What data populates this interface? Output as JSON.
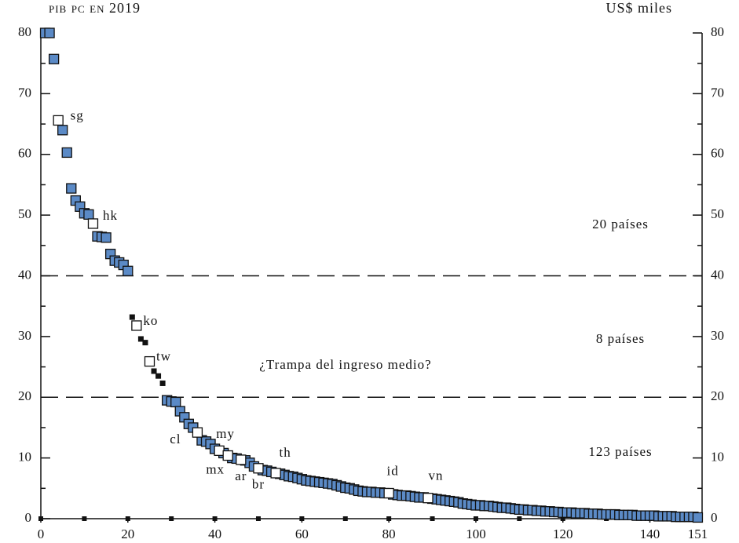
{
  "chart_data": {
    "type": "scatter",
    "ylabel": "pib pc en 2019",
    "y2label": "US$ miles",
    "xlim": [
      0,
      152
    ],
    "ylim": [
      0,
      80
    ],
    "y2lim": [
      0,
      80
    ],
    "xticks": [
      0,
      20,
      40,
      60,
      80,
      100,
      120,
      140,
      151
    ],
    "xticks_minor": [
      0,
      10,
      20,
      30,
      40,
      50,
      60,
      70,
      80,
      90,
      100,
      110,
      120,
      130,
      140,
      150
    ],
    "yticks": [
      0,
      10,
      20,
      30,
      40,
      50,
      60,
      70,
      80
    ],
    "y2ticks": [
      0,
      10,
      20,
      30,
      40,
      50,
      60,
      70,
      80
    ],
    "yticks_minor": [
      5,
      15,
      25,
      35,
      45,
      55,
      65,
      75
    ],
    "hlines": [
      40,
      20
    ],
    "annotations": [
      "20 países",
      "8 países",
      "123 países",
      "¿Trampa del ingreso medio?"
    ],
    "series": [
      {
        "color": "#5b8ac6",
        "marker": "square",
        "x": [
          1,
          2,
          3,
          5,
          6,
          7,
          8,
          9,
          10,
          11,
          13,
          14,
          15,
          16,
          17,
          18,
          19,
          20,
          29,
          30,
          31,
          32,
          33,
          34,
          35,
          37,
          38,
          39,
          40,
          42,
          44,
          45,
          47,
          48,
          49,
          51,
          52,
          53,
          55,
          56,
          57,
          58,
          59,
          60,
          61,
          62,
          63,
          64,
          65,
          66,
          67,
          68,
          69,
          70,
          71,
          72,
          73,
          74,
          75,
          76,
          77,
          78,
          79,
          81,
          82,
          83,
          84,
          85,
          86,
          87,
          88,
          90,
          91,
          92,
          93,
          94,
          95,
          96,
          97,
          98,
          99,
          100,
          101,
          102,
          103,
          104,
          105,
          106,
          107,
          108,
          109,
          110,
          111,
          112,
          113,
          114,
          115,
          116,
          117,
          118,
          119,
          120,
          121,
          122,
          123,
          124,
          125,
          126,
          127,
          128,
          129,
          130,
          131,
          132,
          133,
          134,
          135,
          136,
          137,
          138,
          139,
          140,
          141,
          142,
          143,
          144,
          145,
          146,
          147,
          148,
          149,
          150,
          151
        ],
        "values": [
          80,
          80,
          75.7,
          64,
          60.3,
          54.4,
          52.4,
          51.4,
          50.3,
          50.1,
          46.5,
          46.4,
          46.3,
          43.6,
          42.5,
          42.2,
          41.8,
          40.8,
          19.5,
          19.3,
          19.2,
          17.7,
          16.7,
          15.6,
          15,
          12.9,
          12.7,
          12.3,
          11.5,
          10.8,
          10,
          9.9,
          9.6,
          9.2,
          8.6,
          8,
          7.9,
          7.7,
          7.4,
          7.2,
          7,
          6.9,
          6.7,
          6.5,
          6.3,
          6.2,
          6.1,
          6,
          5.9,
          5.8,
          5.7,
          5.5,
          5.3,
          5.1,
          5,
          4.8,
          4.6,
          4.5,
          4.4,
          4.4,
          4.3,
          4.3,
          4.2,
          4,
          3.9,
          3.8,
          3.8,
          3.7,
          3.6,
          3.5,
          3.5,
          3.3,
          3.2,
          3.1,
          3,
          2.9,
          2.8,
          2.7,
          2.5,
          2.4,
          2.3,
          2.2,
          2.2,
          2.1,
          2.1,
          2,
          1.9,
          1.8,
          1.8,
          1.7,
          1.6,
          1.5,
          1.5,
          1.4,
          1.4,
          1.3,
          1.3,
          1.2,
          1.2,
          1.1,
          1.1,
          1,
          1,
          1,
          0.9,
          0.9,
          0.9,
          0.8,
          0.8,
          0.8,
          0.7,
          0.7,
          0.7,
          0.7,
          0.6,
          0.6,
          0.6,
          0.6,
          0.5,
          0.5,
          0.5,
          0.5,
          0.5,
          0.4,
          0.4,
          0.4,
          0.4,
          0.3,
          0.3,
          0.3,
          0.3,
          0.3,
          0.2
        ]
      },
      {
        "color": "#ffffff",
        "marker": "square",
        "x": [
          4,
          12,
          22,
          25,
          36,
          41,
          43,
          46,
          50,
          54,
          80,
          89
        ],
        "values": [
          65.6,
          48.6,
          31.8,
          25.9,
          14.2,
          11.2,
          10.4,
          9.7,
          8.3,
          7.5,
          4.2,
          3.4
        ],
        "labels": [
          "sg",
          "hk",
          "ko",
          "tw",
          "cl",
          "my",
          "mx",
          "ar",
          "br",
          "th",
          "id",
          "vn"
        ]
      },
      {
        "color": "#111111",
        "marker": "small-square",
        "x": [
          21,
          23,
          24,
          26,
          27,
          28
        ],
        "values": [
          33.2,
          29.6,
          29,
          24.3,
          23.5,
          22.3
        ]
      }
    ]
  }
}
